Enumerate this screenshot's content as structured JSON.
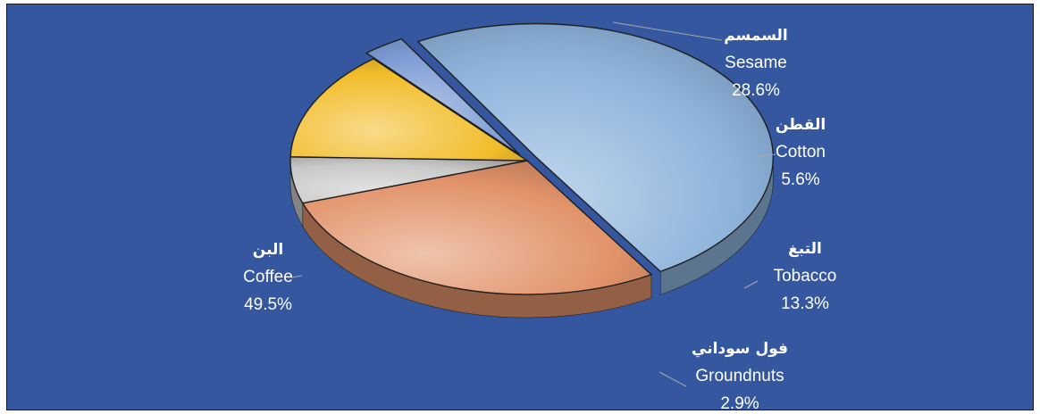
{
  "chart_data": {
    "type": "pie",
    "style": "3d-exploded",
    "background_color": "#3457a0",
    "slices": [
      {
        "label_ar": "البن",
        "label_en": "Coffee",
        "value": 49.5,
        "value_label": "49.5%",
        "color": "#8eb4dc"
      },
      {
        "label_ar": "السمسم",
        "label_en": "Sesame",
        "value": 28.6,
        "value_label": "28.6%",
        "color": "#e2936a"
      },
      {
        "label_ar": "القطن",
        "label_en": "Cotton",
        "value": 5.6,
        "value_label": "5.6%",
        "color": "#c9c9c9"
      },
      {
        "label_ar": "التبغ",
        "label_en": "Tobacco",
        "value": 13.3,
        "value_label": "13.3%",
        "color": "#f2bd2b"
      },
      {
        "label_ar": "فول سوداني",
        "label_en": "Groundnuts",
        "value": 2.9,
        "value_label": "2.9%",
        "color": "#7f9ed6"
      }
    ]
  }
}
